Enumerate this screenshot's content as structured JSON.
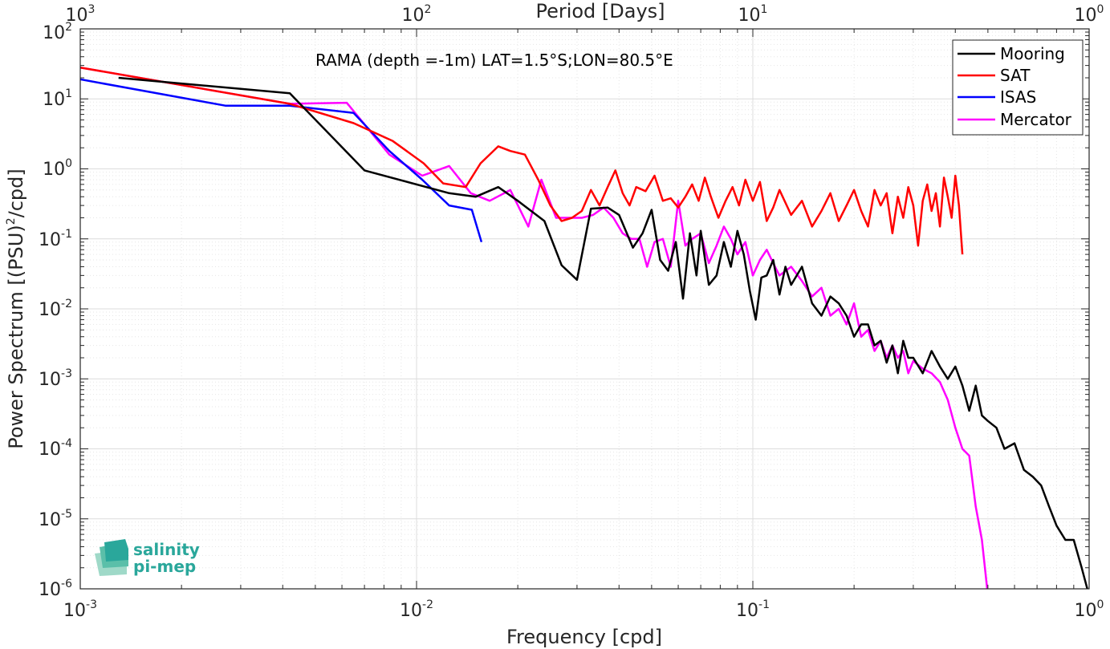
{
  "chart_data": {
    "type": "line",
    "title": "",
    "annotation": "RAMA (depth =-1m) LAT=1.5°S;LON=80.5°E",
    "xlabel": "Frequency [cpd]",
    "ylabel": "Power Spectrum [(PSU)",
    "ylabel_sup": "2",
    "ylabel_tail": "/cpd]",
    "top_xlabel": "Period [Days]",
    "x_scale": "log",
    "y_scale": "log",
    "xlim": [
      0.001,
      1
    ],
    "ylim": [
      1e-06,
      100
    ],
    "grid": true,
    "legend_position": "top-right",
    "x_ticks": [
      {
        "base": "10",
        "exp": "-3"
      },
      {
        "base": "10",
        "exp": "-2"
      },
      {
        "base": "10",
        "exp": "-1"
      },
      {
        "base": "10",
        "exp": "0"
      }
    ],
    "top_ticks": [
      {
        "base": "10",
        "exp": "3"
      },
      {
        "base": "10",
        "exp": "2"
      },
      {
        "base": "10",
        "exp": "1"
      },
      {
        "base": "10",
        "exp": "0"
      }
    ],
    "y_ticks": [
      {
        "base": "10",
        "exp": "-6"
      },
      {
        "base": "10",
        "exp": "-5"
      },
      {
        "base": "10",
        "exp": "-4"
      },
      {
        "base": "10",
        "exp": "-3"
      },
      {
        "base": "10",
        "exp": "-2"
      },
      {
        "base": "10",
        "exp": "-1"
      },
      {
        "base": "10",
        "exp": "0"
      },
      {
        "base": "10",
        "exp": "1"
      },
      {
        "base": "10",
        "exp": "2"
      }
    ],
    "series": [
      {
        "name": "Mooring",
        "color": "#000000",
        "x": [
          0.0013,
          0.0042,
          0.007,
          0.0125,
          0.015,
          0.0175,
          0.02,
          0.024,
          0.027,
          0.03,
          0.033,
          0.037,
          0.04,
          0.044,
          0.047,
          0.05,
          0.053,
          0.056,
          0.059,
          0.062,
          0.065,
          0.068,
          0.07,
          0.074,
          0.078,
          0.082,
          0.086,
          0.09,
          0.094,
          0.098,
          0.102,
          0.106,
          0.11,
          0.115,
          0.12,
          0.125,
          0.13,
          0.14,
          0.15,
          0.16,
          0.17,
          0.18,
          0.19,
          0.2,
          0.21,
          0.22,
          0.23,
          0.24,
          0.25,
          0.26,
          0.27,
          0.28,
          0.29,
          0.3,
          0.32,
          0.34,
          0.36,
          0.38,
          0.4,
          0.42,
          0.44,
          0.46,
          0.48,
          0.5,
          0.53,
          0.56,
          0.6,
          0.64,
          0.68,
          0.72,
          0.76,
          0.8,
          0.85,
          0.9,
          0.95,
          1.0
        ],
        "y": [
          20,
          12,
          0.95,
          0.45,
          0.4,
          0.55,
          0.35,
          0.18,
          0.042,
          0.026,
          0.27,
          0.28,
          0.22,
          0.075,
          0.12,
          0.26,
          0.05,
          0.035,
          0.09,
          0.014,
          0.12,
          0.03,
          0.13,
          0.022,
          0.03,
          0.09,
          0.04,
          0.13,
          0.06,
          0.018,
          0.007,
          0.028,
          0.03,
          0.05,
          0.016,
          0.04,
          0.022,
          0.04,
          0.012,
          0.008,
          0.015,
          0.012,
          0.008,
          0.004,
          0.006,
          0.006,
          0.003,
          0.0035,
          0.0017,
          0.003,
          0.0012,
          0.0035,
          0.002,
          0.002,
          0.0012,
          0.0025,
          0.0015,
          0.001,
          0.0015,
          0.0008,
          0.00035,
          0.0008,
          0.0003,
          0.00025,
          0.0002,
          0.0001,
          0.00012,
          5e-05,
          4e-05,
          3e-05,
          1.5e-05,
          8e-06,
          5e-06,
          5e-06,
          2e-06,
          8e-07
        ]
      },
      {
        "name": "SAT",
        "color": "#ff0000",
        "x": [
          0.001,
          0.0042,
          0.0065,
          0.0085,
          0.0105,
          0.012,
          0.014,
          0.0155,
          0.0175,
          0.019,
          0.021,
          0.023,
          0.025,
          0.027,
          0.029,
          0.031,
          0.033,
          0.035,
          0.037,
          0.039,
          0.041,
          0.043,
          0.045,
          0.048,
          0.051,
          0.054,
          0.057,
          0.06,
          0.063,
          0.066,
          0.069,
          0.072,
          0.075,
          0.079,
          0.083,
          0.087,
          0.091,
          0.095,
          0.1,
          0.105,
          0.11,
          0.115,
          0.12,
          0.13,
          0.14,
          0.15,
          0.16,
          0.17,
          0.18,
          0.19,
          0.2,
          0.21,
          0.22,
          0.23,
          0.24,
          0.25,
          0.26,
          0.27,
          0.28,
          0.29,
          0.3,
          0.31,
          0.32,
          0.33,
          0.34,
          0.35,
          0.36,
          0.37,
          0.38,
          0.39,
          0.4,
          0.41,
          0.42
        ],
        "y": [
          28,
          8.5,
          4.5,
          2.5,
          1.2,
          0.62,
          0.55,
          1.2,
          2.1,
          1.8,
          1.6,
          0.7,
          0.3,
          0.18,
          0.2,
          0.25,
          0.5,
          0.3,
          0.55,
          0.95,
          0.45,
          0.3,
          0.55,
          0.48,
          0.8,
          0.35,
          0.38,
          0.28,
          0.4,
          0.6,
          0.35,
          0.75,
          0.4,
          0.2,
          0.35,
          0.55,
          0.3,
          0.7,
          0.35,
          0.65,
          0.18,
          0.28,
          0.5,
          0.22,
          0.35,
          0.15,
          0.25,
          0.45,
          0.18,
          0.3,
          0.5,
          0.25,
          0.15,
          0.5,
          0.3,
          0.45,
          0.12,
          0.4,
          0.2,
          0.55,
          0.3,
          0.08,
          0.35,
          0.6,
          0.25,
          0.45,
          0.15,
          0.75,
          0.4,
          0.2,
          0.8,
          0.3,
          0.06
        ]
      },
      {
        "name": "ISAS",
        "color": "#0000ff",
        "x": [
          0.001,
          0.0027,
          0.0042,
          0.0065,
          0.0083,
          0.0104,
          0.0125,
          0.0146,
          0.0156
        ],
        "y": [
          19,
          8,
          8,
          6.3,
          1.8,
          0.7,
          0.3,
          0.26,
          0.09
        ]
      },
      {
        "name": "Mercator",
        "color": "#ff00ff",
        "x": [
          0.001,
          0.0042,
          0.0062,
          0.0083,
          0.0104,
          0.0115,
          0.0125,
          0.0145,
          0.0165,
          0.019,
          0.0215,
          0.0235,
          0.026,
          0.0285,
          0.031,
          0.0335,
          0.036,
          0.0385,
          0.041,
          0.0435,
          0.046,
          0.0485,
          0.051,
          0.054,
          0.057,
          0.06,
          0.063,
          0.066,
          0.07,
          0.074,
          0.078,
          0.082,
          0.086,
          0.09,
          0.095,
          0.1,
          0.105,
          0.11,
          0.115,
          0.12,
          0.13,
          0.14,
          0.15,
          0.16,
          0.17,
          0.18,
          0.19,
          0.2,
          0.21,
          0.22,
          0.23,
          0.24,
          0.25,
          0.26,
          0.27,
          0.28,
          0.29,
          0.3,
          0.32,
          0.34,
          0.36,
          0.38,
          0.4,
          0.42,
          0.44,
          0.46,
          0.48,
          0.5
        ],
        "y": [
          28,
          8.5,
          8.8,
          1.6,
          0.8,
          0.95,
          1.1,
          0.45,
          0.35,
          0.5,
          0.15,
          0.7,
          0.2,
          0.2,
          0.2,
          0.22,
          0.28,
          0.2,
          0.12,
          0.1,
          0.1,
          0.04,
          0.09,
          0.1,
          0.04,
          0.35,
          0.08,
          0.1,
          0.12,
          0.045,
          0.08,
          0.15,
          0.1,
          0.06,
          0.09,
          0.03,
          0.05,
          0.07,
          0.045,
          0.03,
          0.04,
          0.025,
          0.015,
          0.02,
          0.008,
          0.01,
          0.006,
          0.012,
          0.004,
          0.005,
          0.0025,
          0.0035,
          0.002,
          0.003,
          0.002,
          0.0025,
          0.0012,
          0.0018,
          0.0014,
          0.0012,
          0.0009,
          0.0005,
          0.0002,
          0.0001,
          8e-05,
          1.5e-05,
          5e-06,
          8e-07
        ]
      }
    ]
  },
  "logo": {
    "line1": "salinity",
    "line2": "pi-mep"
  }
}
